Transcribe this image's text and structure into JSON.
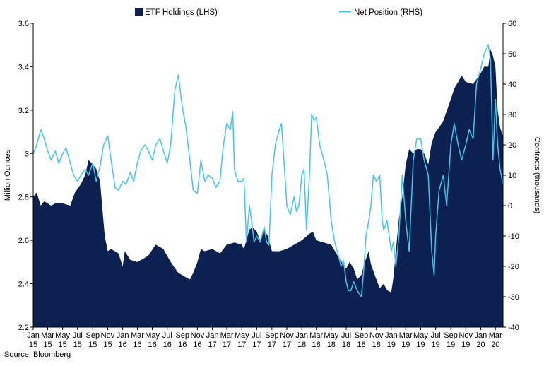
{
  "chart_data": {
    "type": "area",
    "title": "",
    "legend_position": "top",
    "grid": false,
    "colors": {
      "etf": "#0c2150",
      "net": "#41c5ee"
    },
    "x_tick_labels": [
      [
        "Jan",
        "15"
      ],
      [
        "Mar",
        "15"
      ],
      [
        "May",
        "15"
      ],
      [
        "Jul",
        "15"
      ],
      [
        "Sep",
        "15"
      ],
      [
        "Nov",
        "15"
      ],
      [
        "Jan",
        "16"
      ],
      [
        "Mar",
        "16"
      ],
      [
        "May",
        "16"
      ],
      [
        "Jul",
        "16"
      ],
      [
        "Sep",
        "16"
      ],
      [
        "Nov",
        "16"
      ],
      [
        "Jan",
        "17"
      ],
      [
        "Mar",
        "17"
      ],
      [
        "May",
        "17"
      ],
      [
        "Jul",
        "17"
      ],
      [
        "Sep",
        "17"
      ],
      [
        "Nov",
        "17"
      ],
      [
        "Jan",
        "18"
      ],
      [
        "Mar",
        "18"
      ],
      [
        "May",
        "18"
      ],
      [
        "Jul",
        "18"
      ],
      [
        "Sep",
        "18"
      ],
      [
        "Nov",
        "18"
      ],
      [
        "Jan",
        "19"
      ],
      [
        "Mar",
        "19"
      ],
      [
        "May",
        "19"
      ],
      [
        "Jul",
        "19"
      ],
      [
        "Sep",
        "19"
      ],
      [
        "Nov",
        "19"
      ],
      [
        "Jan",
        "20"
      ],
      [
        "Mar",
        "20"
      ]
    ],
    "x_range": [
      "2015-01",
      "2020-04"
    ],
    "y_left": {
      "label": "Million Ounces",
      "range": [
        2.2,
        3.6
      ],
      "ticks": [
        "2.2",
        "2.4",
        "2.6",
        "2.8",
        "3",
        "3.2",
        "3.4",
        "3.6"
      ]
    },
    "y_right": {
      "label": "Contracts (thousands)",
      "range": [
        -40,
        60
      ],
      "ticks": [
        "-40",
        "-30",
        "-20",
        "-10",
        "0",
        "10",
        "20",
        "30",
        "40",
        "50",
        "60"
      ]
    },
    "series": [
      {
        "name": "ETF Holdings (LHS)",
        "axis": "left",
        "type": "area",
        "points": [
          [
            "2015-01-01",
            2.8
          ],
          [
            "2015-01-15",
            2.82
          ],
          [
            "2015-02-01",
            2.76
          ],
          [
            "2015-02-15",
            2.78
          ],
          [
            "2015-03-01",
            2.77
          ],
          [
            "2015-03-15",
            2.76
          ],
          [
            "2015-04-01",
            2.77
          ],
          [
            "2015-05-01",
            2.77
          ],
          [
            "2015-06-01",
            2.76
          ],
          [
            "2015-06-20",
            2.82
          ],
          [
            "2015-07-15",
            2.86
          ],
          [
            "2015-08-01",
            2.9
          ],
          [
            "2015-08-15",
            2.97
          ],
          [
            "2015-09-01",
            2.95
          ],
          [
            "2015-09-15",
            2.93
          ],
          [
            "2015-10-01",
            2.87
          ],
          [
            "2015-10-10",
            2.75
          ],
          [
            "2015-10-20",
            2.62
          ],
          [
            "2015-11-01",
            2.55
          ],
          [
            "2015-11-15",
            2.56
          ],
          [
            "2015-12-15",
            2.54
          ],
          [
            "2016-01-01",
            2.48
          ],
          [
            "2016-01-10",
            2.55
          ],
          [
            "2016-02-01",
            2.51
          ],
          [
            "2016-03-01",
            2.5
          ],
          [
            "2016-04-01",
            2.52
          ],
          [
            "2016-04-15",
            2.53
          ],
          [
            "2016-05-15",
            2.58
          ],
          [
            "2016-06-15",
            2.56
          ],
          [
            "2016-07-15",
            2.5
          ],
          [
            "2016-08-15",
            2.45
          ],
          [
            "2016-09-15",
            2.43
          ],
          [
            "2016-10-01",
            2.42
          ],
          [
            "2016-10-15",
            2.45
          ],
          [
            "2016-11-01",
            2.5
          ],
          [
            "2016-11-15",
            2.56
          ],
          [
            "2016-12-01",
            2.55
          ],
          [
            "2017-01-01",
            2.56
          ],
          [
            "2017-02-01",
            2.54
          ],
          [
            "2017-03-01",
            2.58
          ],
          [
            "2017-04-01",
            2.59
          ],
          [
            "2017-05-01",
            2.58
          ],
          [
            "2017-05-10",
            2.56
          ],
          [
            "2017-06-01",
            2.65
          ],
          [
            "2017-06-15",
            2.66
          ],
          [
            "2017-07-01",
            2.64
          ],
          [
            "2017-07-15",
            2.6
          ],
          [
            "2017-08-01",
            2.65
          ],
          [
            "2017-08-15",
            2.62
          ],
          [
            "2017-09-01",
            2.55
          ],
          [
            "2017-10-01",
            2.55
          ],
          [
            "2017-11-01",
            2.56
          ],
          [
            "2017-12-01",
            2.58
          ],
          [
            "2018-01-01",
            2.6
          ],
          [
            "2018-02-01",
            2.63
          ],
          [
            "2018-02-15",
            2.64
          ],
          [
            "2018-03-01",
            2.6
          ],
          [
            "2018-04-01",
            2.59
          ],
          [
            "2018-05-01",
            2.58
          ],
          [
            "2018-06-01",
            2.52
          ],
          [
            "2018-07-01",
            2.47
          ],
          [
            "2018-07-15",
            2.5
          ],
          [
            "2018-08-01",
            2.47
          ],
          [
            "2018-08-15",
            2.42
          ],
          [
            "2018-09-01",
            2.44
          ],
          [
            "2018-09-15",
            2.5
          ],
          [
            "2018-10-01",
            2.55
          ],
          [
            "2018-10-10",
            2.49
          ],
          [
            "2018-11-01",
            2.42
          ],
          [
            "2018-11-15",
            2.38
          ],
          [
            "2018-12-01",
            2.4
          ],
          [
            "2018-12-15",
            2.37
          ],
          [
            "2019-01-01",
            2.36
          ],
          [
            "2019-01-10",
            2.43
          ],
          [
            "2019-02-01",
            2.7
          ],
          [
            "2019-02-15",
            2.8
          ],
          [
            "2019-03-01",
            2.95
          ],
          [
            "2019-03-15",
            3.02
          ],
          [
            "2019-04-01",
            3.0
          ],
          [
            "2019-04-15",
            3.02
          ],
          [
            "2019-05-01",
            3.02
          ],
          [
            "2019-05-15",
            3.0
          ],
          [
            "2019-06-01",
            2.95
          ],
          [
            "2019-06-15",
            3.05
          ],
          [
            "2019-07-01",
            3.1
          ],
          [
            "2019-07-15",
            3.12
          ],
          [
            "2019-08-01",
            3.15
          ],
          [
            "2019-09-01",
            3.25
          ],
          [
            "2019-09-15",
            3.3
          ],
          [
            "2019-10-01",
            3.33
          ],
          [
            "2019-10-15",
            3.36
          ],
          [
            "2019-11-01",
            3.33
          ],
          [
            "2019-12-01",
            3.32
          ],
          [
            "2020-01-01",
            3.37
          ],
          [
            "2020-01-15",
            3.4
          ],
          [
            "2020-02-01",
            3.4
          ],
          [
            "2020-02-10",
            3.48
          ],
          [
            "2020-02-20",
            3.45
          ],
          [
            "2020-03-01",
            3.4
          ],
          [
            "2020-03-10",
            3.2
          ],
          [
            "2020-03-20",
            3.12
          ],
          [
            "2020-04-01",
            3.08
          ]
        ]
      },
      {
        "name": "Net Position (RHS)",
        "axis": "right",
        "type": "line",
        "points": [
          [
            "2015-01-01",
            17
          ],
          [
            "2015-01-15",
            20
          ],
          [
            "2015-02-01",
            25
          ],
          [
            "2015-02-15",
            22
          ],
          [
            "2015-03-01",
            18
          ],
          [
            "2015-03-15",
            15
          ],
          [
            "2015-04-01",
            18
          ],
          [
            "2015-04-15",
            14
          ],
          [
            "2015-05-01",
            17
          ],
          [
            "2015-05-15",
            19
          ],
          [
            "2015-06-01",
            14
          ],
          [
            "2015-06-15",
            10
          ],
          [
            "2015-07-01",
            8
          ],
          [
            "2015-07-15",
            10
          ],
          [
            "2015-08-01",
            12
          ],
          [
            "2015-08-15",
            10
          ],
          [
            "2015-09-01",
            14
          ],
          [
            "2015-09-15",
            8
          ],
          [
            "2015-10-01",
            13
          ],
          [
            "2015-10-15",
            20
          ],
          [
            "2015-11-01",
            23
          ],
          [
            "2015-11-15",
            15
          ],
          [
            "2015-12-01",
            6
          ],
          [
            "2015-12-15",
            5
          ],
          [
            "2016-01-01",
            8
          ],
          [
            "2016-01-15",
            7
          ],
          [
            "2016-02-01",
            11
          ],
          [
            "2016-02-15",
            8
          ],
          [
            "2016-03-01",
            14
          ],
          [
            "2016-03-15",
            18
          ],
          [
            "2016-04-01",
            20
          ],
          [
            "2016-04-15",
            18
          ],
          [
            "2016-05-01",
            15
          ],
          [
            "2016-05-15",
            20
          ],
          [
            "2016-06-01",
            22
          ],
          [
            "2016-06-15",
            18
          ],
          [
            "2016-07-01",
            14
          ],
          [
            "2016-07-15",
            20
          ],
          [
            "2016-08-01",
            38
          ],
          [
            "2016-08-15",
            43
          ],
          [
            "2016-09-01",
            32
          ],
          [
            "2016-09-15",
            26
          ],
          [
            "2016-10-01",
            15
          ],
          [
            "2016-10-15",
            5
          ],
          [
            "2016-11-01",
            4
          ],
          [
            "2016-11-15",
            15
          ],
          [
            "2016-12-01",
            8
          ],
          [
            "2016-12-15",
            10
          ],
          [
            "2017-01-01",
            9
          ],
          [
            "2017-01-15",
            6
          ],
          [
            "2017-02-01",
            8
          ],
          [
            "2017-02-15",
            20
          ],
          [
            "2017-03-01",
            27
          ],
          [
            "2017-03-15",
            25
          ],
          [
            "2017-03-25",
            31
          ],
          [
            "2017-04-01",
            12
          ],
          [
            "2017-04-15",
            8
          ],
          [
            "2017-05-01",
            8
          ],
          [
            "2017-05-10",
            9
          ],
          [
            "2017-05-20",
            -12
          ],
          [
            "2017-06-01",
            0
          ],
          [
            "2017-06-10",
            -5
          ],
          [
            "2017-06-20",
            -12
          ],
          [
            "2017-07-01",
            -10
          ],
          [
            "2017-07-15",
            -12
          ],
          [
            "2017-08-01",
            -7
          ],
          [
            "2017-08-10",
            -12
          ],
          [
            "2017-08-20",
            -13
          ],
          [
            "2017-09-01",
            10
          ],
          [
            "2017-09-15",
            20
          ],
          [
            "2017-10-01",
            25
          ],
          [
            "2017-10-10",
            27
          ],
          [
            "2017-10-20",
            15
          ],
          [
            "2017-11-01",
            0
          ],
          [
            "2017-11-15",
            -3
          ],
          [
            "2017-12-01",
            3
          ],
          [
            "2017-12-10",
            -2
          ],
          [
            "2017-12-20",
            0
          ],
          [
            "2018-01-01",
            10
          ],
          [
            "2018-01-10",
            12
          ],
          [
            "2018-01-20",
            -8
          ],
          [
            "2018-02-01",
            10
          ],
          [
            "2018-02-10",
            30
          ],
          [
            "2018-02-20",
            28
          ],
          [
            "2018-03-01",
            29
          ],
          [
            "2018-03-15",
            20
          ],
          [
            "2018-04-01",
            15
          ],
          [
            "2018-04-15",
            10
          ],
          [
            "2018-05-01",
            -5
          ],
          [
            "2018-05-15",
            -12
          ],
          [
            "2018-06-01",
            -17
          ],
          [
            "2018-06-10",
            -20
          ],
          [
            "2018-06-20",
            -18
          ],
          [
            "2018-07-01",
            -25
          ],
          [
            "2018-07-10",
            -28
          ],
          [
            "2018-07-20",
            -28
          ],
          [
            "2018-08-01",
            -25
          ],
          [
            "2018-08-15",
            -28
          ],
          [
            "2018-09-01",
            -30
          ],
          [
            "2018-09-10",
            -22
          ],
          [
            "2018-09-20",
            -10
          ],
          [
            "2018-10-01",
            -5
          ],
          [
            "2018-10-10",
            0
          ],
          [
            "2018-10-20",
            10
          ],
          [
            "2018-11-01",
            8
          ],
          [
            "2018-11-15",
            10
          ],
          [
            "2018-11-25",
            -5
          ],
          [
            "2018-12-01",
            -8
          ],
          [
            "2018-12-15",
            -5
          ],
          [
            "2019-01-01",
            -15
          ],
          [
            "2019-01-10",
            -12
          ],
          [
            "2019-01-20",
            -20
          ],
          [
            "2019-02-01",
            -10
          ],
          [
            "2019-02-15",
            10
          ],
          [
            "2019-03-01",
            -5
          ],
          [
            "2019-03-15",
            -15
          ],
          [
            "2019-04-01",
            15
          ],
          [
            "2019-04-15",
            22
          ],
          [
            "2019-05-01",
            22
          ],
          [
            "2019-05-15",
            15
          ],
          [
            "2019-06-01",
            10
          ],
          [
            "2019-06-15",
            -15
          ],
          [
            "2019-06-25",
            -23
          ],
          [
            "2019-07-01",
            -10
          ],
          [
            "2019-07-15",
            5
          ],
          [
            "2019-08-01",
            10
          ],
          [
            "2019-08-15",
            0
          ],
          [
            "2019-09-01",
            20
          ],
          [
            "2019-09-15",
            27
          ],
          [
            "2019-10-01",
            20
          ],
          [
            "2019-10-15",
            15
          ],
          [
            "2019-11-01",
            20
          ],
          [
            "2019-11-15",
            25
          ],
          [
            "2019-12-01",
            22
          ],
          [
            "2019-12-15",
            40
          ],
          [
            "2020-01-01",
            45
          ],
          [
            "2020-01-15",
            50
          ],
          [
            "2020-02-01",
            53
          ],
          [
            "2020-02-10",
            48
          ],
          [
            "2020-02-20",
            15
          ],
          [
            "2020-03-01",
            35
          ],
          [
            "2020-03-10",
            20
          ],
          [
            "2020-03-20",
            12
          ],
          [
            "2020-04-01",
            7
          ]
        ]
      }
    ],
    "source": "Source: Bloomberg"
  }
}
